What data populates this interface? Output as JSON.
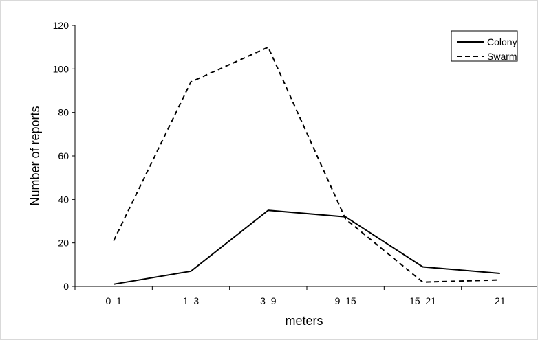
{
  "chart_data": {
    "type": "line",
    "title": "",
    "xlabel": "meters",
    "ylabel": "Number of reports",
    "categories": [
      "0–1",
      "1–3",
      "3–9",
      "9–15",
      "15–21",
      "21"
    ],
    "ylim": [
      0,
      120
    ],
    "yticks": [
      0,
      20,
      40,
      60,
      80,
      100,
      120
    ],
    "grid": false,
    "legend_position": "top-right",
    "series": [
      {
        "name": "Colony",
        "values": [
          1,
          7,
          35,
          32,
          9,
          6
        ],
        "line_style": "solid",
        "color": "#000000"
      },
      {
        "name": "Swarm",
        "values": [
          21,
          94,
          110,
          31,
          2,
          3
        ],
        "line_style": "dashed",
        "color": "#000000"
      }
    ]
  }
}
